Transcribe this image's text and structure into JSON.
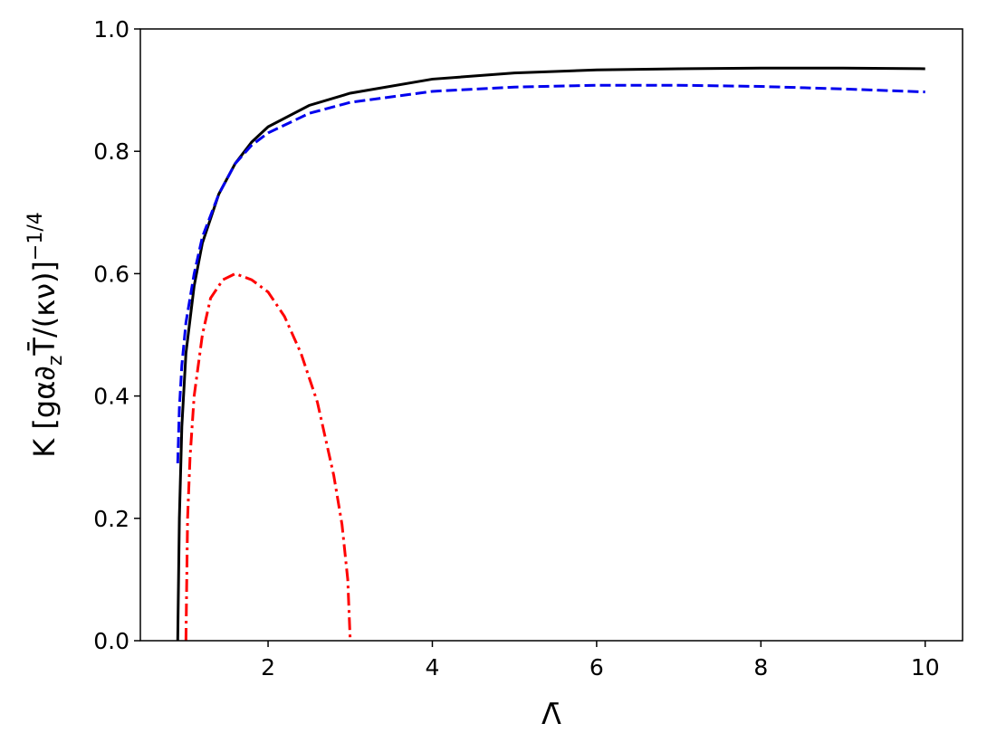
{
  "chart_data": {
    "type": "line",
    "xlabel": "Λ̄",
    "ylabel": [
      "K [gα∂",
      "z",
      "T̄/(κν)]",
      "−1/4"
    ],
    "xlim": [
      0.445,
      10.455
    ],
    "xticks": [
      2,
      4,
      6,
      8,
      10
    ],
    "ylim": [
      0,
      1
    ],
    "yticks": [
      {
        "value": 0,
        "label": "0.0"
      },
      0.2,
      0.4,
      0.6,
      0.8,
      {
        "value": 1,
        "label": "1.0"
      }
    ],
    "series": [
      {
        "color": "#000000",
        "linestyle": "solid",
        "x": [
          0.9,
          0.92,
          0.95,
          1.0,
          1.1,
          1.2,
          1.4,
          1.6,
          1.8,
          2.0,
          2.5,
          3,
          4,
          5,
          6,
          7,
          8,
          9,
          10
        ],
        "values": [
          0,
          0.2,
          0.35,
          0.47,
          0.58,
          0.65,
          0.73,
          0.78,
          0.815,
          0.84,
          0.875,
          0.895,
          0.918,
          0.928,
          0.933,
          0.935,
          0.936,
          0.936,
          0.935
        ]
      },
      {
        "color": "#0000ee",
        "linestyle": "dashed",
        "x": [
          0.9,
          0.92,
          0.95,
          1.0,
          1.1,
          1.2,
          1.4,
          1.6,
          1.8,
          2.0,
          2.5,
          3,
          4,
          5,
          6,
          7,
          8,
          9,
          10
        ],
        "values": [
          0.29,
          0.38,
          0.45,
          0.52,
          0.6,
          0.66,
          0.73,
          0.78,
          0.81,
          0.83,
          0.862,
          0.88,
          0.898,
          0.905,
          0.908,
          0.908,
          0.906,
          0.902,
          0.897
        ]
      },
      {
        "color": "#ff0000",
        "linestyle": "dashdot",
        "x": [
          1.0,
          1.02,
          1.05,
          1.1,
          1.2,
          1.3,
          1.45,
          1.6,
          1.8,
          2.0,
          2.2,
          2.4,
          2.6,
          2.8,
          2.9,
          2.97,
          3.0
        ],
        "values": [
          0,
          0.2,
          0.3,
          0.4,
          0.5,
          0.56,
          0.59,
          0.6,
          0.59,
          0.57,
          0.53,
          0.47,
          0.39,
          0.27,
          0.19,
          0.1,
          0
        ]
      }
    ]
  }
}
